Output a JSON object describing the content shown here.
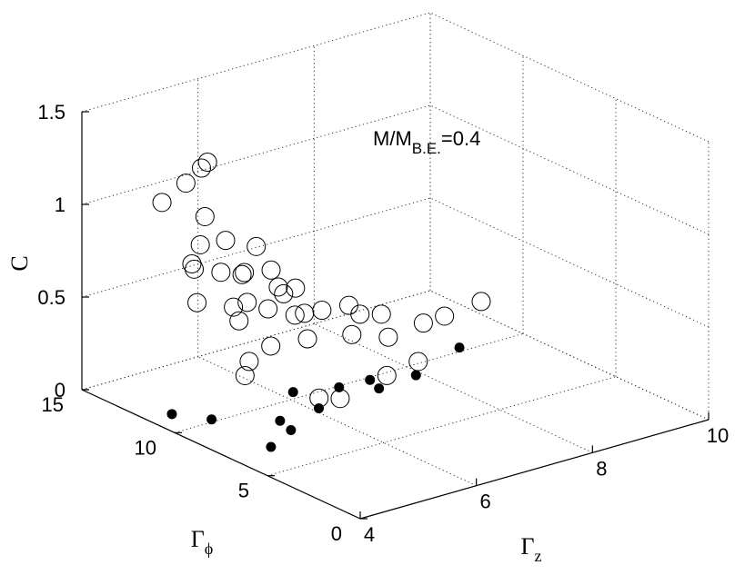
{
  "chart_data": {
    "type": "scatter",
    "projection": "3d",
    "annotation": {
      "main": "M/M",
      "subscript": "B.E.",
      "suffix": "=0.4"
    },
    "axes": {
      "x": {
        "label": "Γ",
        "label_subscript": "z",
        "lim": [
          4,
          10
        ],
        "ticks": [
          4,
          6,
          8,
          10
        ],
        "tick_labels": [
          "4",
          "6",
          "8",
          "10"
        ]
      },
      "y": {
        "label": "Γ",
        "label_subscript": "ϕ",
        "lim": [
          0,
          15
        ],
        "ticks": [
          0,
          5,
          10,
          15
        ],
        "tick_labels": [
          "0",
          "5",
          "10",
          "15"
        ]
      },
      "z": {
        "label": "C",
        "lim": [
          0,
          1.5
        ],
        "ticks": [
          0,
          0.5,
          1,
          1.5
        ],
        "tick_labels": [
          "0",
          "0.5",
          "1",
          "1.5"
        ]
      }
    },
    "grid": true,
    "series": [
      {
        "marker": "open-circle",
        "points": [
          [
            4.9,
            13.5,
            1.0
          ],
          [
            5.6,
            14.4,
            1.0
          ],
          [
            5.9,
            14.5,
            1.05
          ],
          [
            6.1,
            14.8,
            1.05
          ],
          [
            5.8,
            14.0,
            0.82
          ],
          [
            5.0,
            12.2,
            0.72
          ],
          [
            5.4,
            13.0,
            0.75
          ],
          [
            5.9,
            13.2,
            0.72
          ],
          [
            6.3,
            12.8,
            0.67
          ],
          [
            5.2,
            12.7,
            0.65
          ],
          [
            5.5,
            12.2,
            0.63
          ],
          [
            5.8,
            12.0,
            0.6
          ],
          [
            6.0,
            12.5,
            0.57
          ],
          [
            6.3,
            12.0,
            0.58
          ],
          [
            4.8,
            11.3,
            0.57
          ],
          [
            5.3,
            10.9,
            0.52
          ],
          [
            5.6,
            11.1,
            0.51
          ],
          [
            6.1,
            10.7,
            0.53
          ],
          [
            6.2,
            11.3,
            0.53
          ],
          [
            6.4,
            11.0,
            0.52
          ],
          [
            5.3,
            10.6,
            0.46
          ],
          [
            5.8,
            10.6,
            0.48
          ],
          [
            6.3,
            10.2,
            0.43
          ],
          [
            6.6,
            10.2,
            0.42
          ],
          [
            6.2,
            10.4,
            0.42
          ],
          [
            7.0,
            10.0,
            0.42
          ],
          [
            7.0,
            9.4,
            0.4
          ],
          [
            7.4,
            9.5,
            0.36
          ],
          [
            4.9,
            8.8,
            0.36
          ],
          [
            5.4,
            9.2,
            0.38
          ],
          [
            6.0,
            9.1,
            0.37
          ],
          [
            6.7,
            8.9,
            0.34
          ],
          [
            7.2,
            8.5,
            0.3
          ],
          [
            7.9,
            8.8,
            0.3
          ],
          [
            8.2,
            8.6,
            0.32
          ],
          [
            8.8,
            8.5,
            0.35
          ],
          [
            4.7,
            8.4,
            0.32
          ],
          [
            5.4,
            6.6,
            0.22
          ],
          [
            5.7,
            6.4,
            0.2
          ],
          [
            6.6,
            6.7,
            0.23
          ],
          [
            7.3,
            7.2,
            0.22
          ]
        ]
      },
      {
        "marker": "filled-dot",
        "points": [
          [
            4.4,
            11.4,
            0
          ],
          [
            4.7,
            10.2,
            0
          ],
          [
            4.7,
            7.0,
            0
          ],
          [
            5.3,
            7.8,
            0
          ],
          [
            5.4,
            8.7,
            0
          ],
          [
            6.1,
            8.8,
            0
          ],
          [
            6.2,
            10.5,
            0
          ],
          [
            6.8,
            9.9,
            0
          ],
          [
            7.3,
            9.8,
            0
          ],
          [
            7.2,
            9.0,
            0
          ],
          [
            7.9,
            9.2,
            0
          ],
          [
            9.0,
            10.3,
            0
          ]
        ]
      }
    ]
  }
}
